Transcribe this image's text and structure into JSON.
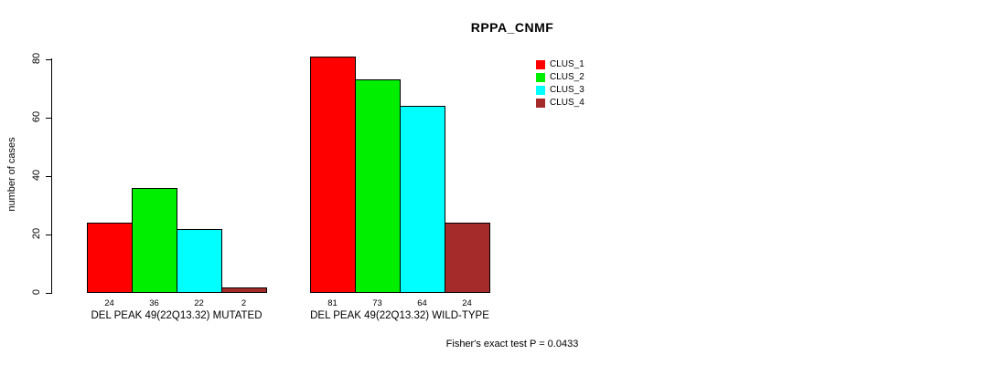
{
  "title": "RPPA_CNMF",
  "footer": "Fisher's exact test P = 0.0433",
  "y_axis": {
    "label": "number of cases",
    "ticks": [
      0,
      20,
      40,
      60,
      80
    ]
  },
  "legend": {
    "items": [
      {
        "label": "CLUS_1",
        "color": "#FF0000"
      },
      {
        "label": "CLUS_2",
        "color": "#00EE00"
      },
      {
        "label": "CLUS_3",
        "color": "#00FFFF"
      },
      {
        "label": "CLUS_4",
        "color": "#A52A2A"
      }
    ]
  },
  "chart_data": {
    "type": "bar",
    "title": "RPPA_CNMF",
    "xlabel": "",
    "ylabel": "number of cases",
    "ylim": [
      0,
      80
    ],
    "yticks": [
      0,
      20,
      40,
      60,
      80
    ],
    "grid": false,
    "legend_position": "top-right",
    "categories": [
      "DEL PEAK 49(22Q13.32) MUTATED",
      "DEL PEAK 49(22Q13.32) WILD-TYPE"
    ],
    "series": [
      {
        "name": "CLUS_1",
        "color": "#FF0000",
        "values": [
          24,
          81
        ]
      },
      {
        "name": "CLUS_2",
        "color": "#00EE00",
        "values": [
          36,
          73
        ]
      },
      {
        "name": "CLUS_3",
        "color": "#00FFFF",
        "values": [
          22,
          64
        ]
      },
      {
        "name": "CLUS_4",
        "color": "#A52A2A",
        "values": [
          2,
          24
        ]
      }
    ],
    "bar_value_labels": [
      [
        24,
        36,
        22,
        2
      ],
      [
        81,
        73,
        64,
        24
      ]
    ],
    "annotation": "Fisher's exact test P = 0.0433"
  }
}
